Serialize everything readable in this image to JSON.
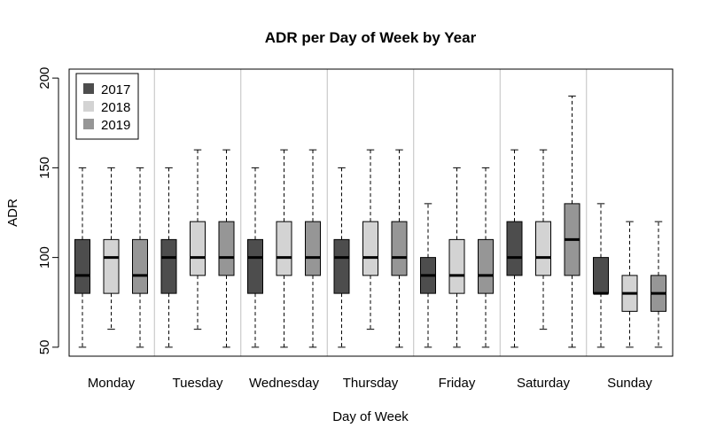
{
  "chart_data": {
    "type": "boxplot",
    "title": "ADR per Day of Week by Year",
    "xlabel": "Day of Week",
    "ylabel": "ADR",
    "ylim": [
      45,
      205
    ],
    "yticks": [
      50,
      100,
      150,
      200
    ],
    "categories": [
      "Monday",
      "Tuesday",
      "Wednesday",
      "Thursday",
      "Friday",
      "Saturday",
      "Sunday"
    ],
    "legend": {
      "position": "top-left"
    },
    "series": [
      {
        "name": "2017",
        "color": "#4d4d4d",
        "boxes": [
          {
            "min": 50,
            "q1": 80,
            "median": 90,
            "q3": 110,
            "max": 150
          },
          {
            "min": 50,
            "q1": 80,
            "median": 100,
            "q3": 110,
            "max": 150
          },
          {
            "min": 50,
            "q1": 80,
            "median": 100,
            "q3": 110,
            "max": 150
          },
          {
            "min": 50,
            "q1": 80,
            "median": 100,
            "q3": 110,
            "max": 150
          },
          {
            "min": 50,
            "q1": 80,
            "median": 90,
            "q3": 100,
            "max": 130
          },
          {
            "min": 50,
            "q1": 90,
            "median": 100,
            "q3": 120,
            "max": 160
          },
          {
            "min": 50,
            "q1": 80,
            "median": 80,
            "q3": 100,
            "max": 130
          }
        ]
      },
      {
        "name": "2018",
        "color": "#d3d3d3",
        "boxes": [
          {
            "min": 60,
            "q1": 80,
            "median": 100,
            "q3": 110,
            "max": 150
          },
          {
            "min": 60,
            "q1": 90,
            "median": 100,
            "q3": 120,
            "max": 160
          },
          {
            "min": 50,
            "q1": 90,
            "median": 100,
            "q3": 120,
            "max": 160
          },
          {
            "min": 60,
            "q1": 90,
            "median": 100,
            "q3": 120,
            "max": 160
          },
          {
            "min": 50,
            "q1": 80,
            "median": 90,
            "q3": 110,
            "max": 150
          },
          {
            "min": 60,
            "q1": 90,
            "median": 100,
            "q3": 120,
            "max": 160
          },
          {
            "min": 50,
            "q1": 70,
            "median": 80,
            "q3": 90,
            "max": 120
          }
        ]
      },
      {
        "name": "2019",
        "color": "#969696",
        "boxes": [
          {
            "min": 50,
            "q1": 80,
            "median": 90,
            "q3": 110,
            "max": 150
          },
          {
            "min": 50,
            "q1": 90,
            "median": 100,
            "q3": 120,
            "max": 160
          },
          {
            "min": 50,
            "q1": 90,
            "median": 100,
            "q3": 120,
            "max": 160
          },
          {
            "min": 50,
            "q1": 90,
            "median": 100,
            "q3": 120,
            "max": 160
          },
          {
            "min": 50,
            "q1": 80,
            "median": 90,
            "q3": 110,
            "max": 150
          },
          {
            "min": 50,
            "q1": 90,
            "median": 110,
            "q3": 130,
            "max": 190
          },
          {
            "min": 50,
            "q1": 70,
            "median": 80,
            "q3": 90,
            "max": 120
          }
        ]
      }
    ]
  }
}
